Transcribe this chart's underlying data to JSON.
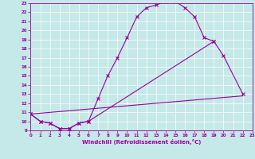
{
  "line1_x": [
    0,
    1,
    2,
    3,
    4,
    5,
    6,
    7,
    8,
    9,
    10,
    11,
    12,
    13,
    14,
    15,
    16,
    17,
    18,
    19
  ],
  "line1_y": [
    10.8,
    10.0,
    9.8,
    9.2,
    9.2,
    9.8,
    10.0,
    12.5,
    15.0,
    17.0,
    19.2,
    21.5,
    22.5,
    22.8,
    23.2,
    23.2,
    22.5,
    21.5,
    19.2,
    18.8
  ],
  "line2_x": [
    0,
    1,
    2,
    3,
    4,
    5,
    6,
    19,
    20,
    22
  ],
  "line2_y": [
    10.8,
    10.0,
    9.8,
    9.2,
    9.2,
    9.8,
    10.0,
    18.8,
    17.2,
    13.0
  ],
  "line3_x": [
    0,
    22
  ],
  "line3_y": [
    10.8,
    12.8
  ],
  "xlim": [
    0,
    23
  ],
  "ylim": [
    9,
    23
  ],
  "yticks": [
    9,
    10,
    11,
    12,
    13,
    14,
    15,
    16,
    17,
    18,
    19,
    20,
    21,
    22,
    23
  ],
  "xticks": [
    0,
    1,
    2,
    3,
    4,
    5,
    6,
    7,
    8,
    9,
    10,
    11,
    12,
    13,
    14,
    15,
    16,
    17,
    18,
    19,
    20,
    21,
    22,
    23
  ],
  "xlabel": "Windchill (Refroidissement éolien,°C)",
  "line_color": "#990099",
  "bg_color": "#c5e8e8",
  "grid_color": "#ffffff"
}
